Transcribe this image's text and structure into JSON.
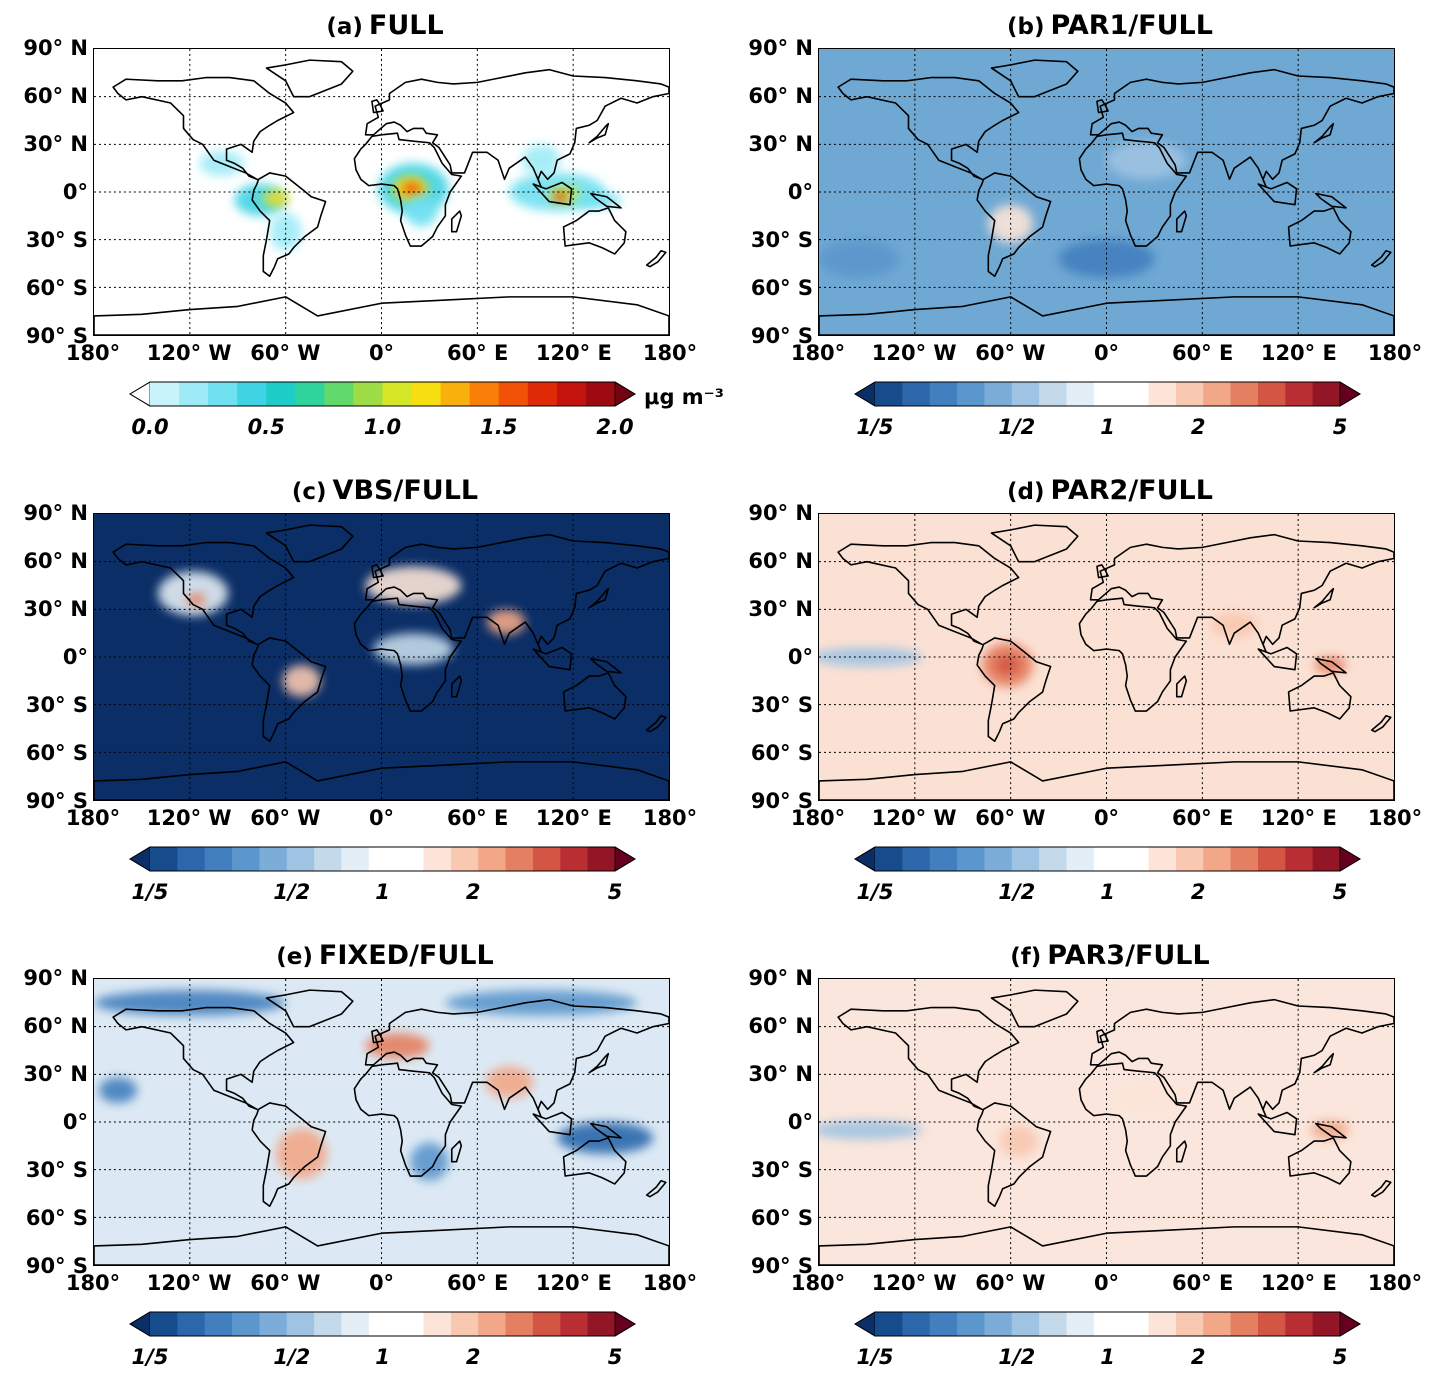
{
  "panels": [
    {
      "id": "a",
      "label": "(a)",
      "title": "FULL",
      "palette": "abs",
      "colorbar_ticks": [
        "0.0",
        "0.5",
        "1.0",
        "1.5",
        "2.0"
      ],
      "unit": "μg m⁻³",
      "ocean_color": "#ffffff"
    },
    {
      "id": "b",
      "label": "(b)",
      "title": "PAR1/FULL",
      "palette": "ratio",
      "colorbar_ticks": [
        "1/5",
        "1/2",
        "1",
        "2",
        "5"
      ],
      "unit": "",
      "ocean_color": "#6fa8d3"
    },
    {
      "id": "c",
      "label": "(c)",
      "title": "VBS/FULL",
      "palette": "ratio",
      "colorbar_ticks": [
        "1/5",
        "1/2",
        "1",
        "2",
        "5"
      ],
      "unit": "",
      "ocean_color": "#0b2e66"
    },
    {
      "id": "d",
      "label": "(d)",
      "title": "PAR2/FULL",
      "palette": "ratio",
      "colorbar_ticks": [
        "1/5",
        "1/2",
        "1",
        "2",
        "5"
      ],
      "unit": "",
      "ocean_color": "#fbe1d4"
    },
    {
      "id": "e",
      "label": "(e)",
      "title": "FIXED/FULL",
      "palette": "ratio",
      "colorbar_ticks": [
        "1/5",
        "1/2",
        "1",
        "2",
        "5"
      ],
      "unit": "",
      "ocean_color": "#dce9f4"
    },
    {
      "id": "f",
      "label": "(f)",
      "title": "PAR3/FULL",
      "palette": "ratio",
      "colorbar_ticks": [
        "1/5",
        "1/2",
        "1",
        "2",
        "5"
      ],
      "unit": "",
      "ocean_color": "#fae6dc"
    }
  ],
  "lat_labels": [
    "90° N",
    "60° N",
    "30° N",
    "0°",
    "30° S",
    "60° S",
    "90° S"
  ],
  "lon_labels": [
    "180°",
    "120° W",
    "60° W",
    "0°",
    "60° E",
    "120° E",
    "180°"
  ],
  "palettes": {
    "abs": [
      "#ffffff",
      "#c8f3fb",
      "#9eebf7",
      "#6fe0f0",
      "#3fd3e4",
      "#1ecdc8",
      "#2ed49c",
      "#62d96b",
      "#9edd45",
      "#d5e626",
      "#f6de10",
      "#f9b00c",
      "#f98008",
      "#f25206",
      "#df2a08",
      "#c2140c",
      "#9e0a12",
      "#740314"
    ],
    "ratio": [
      "#0b2e66",
      "#174c8c",
      "#2c67ac",
      "#427fbe",
      "#5b96cc",
      "#7cacd8",
      "#9fc3e2",
      "#c4daeb",
      "#e3eef6",
      "#ffffff",
      "#ffffff",
      "#fce5d8",
      "#f8c8b0",
      "#f2a789",
      "#e57f61",
      "#d35544",
      "#b82e33",
      "#921626",
      "#67001f"
    ]
  }
}
